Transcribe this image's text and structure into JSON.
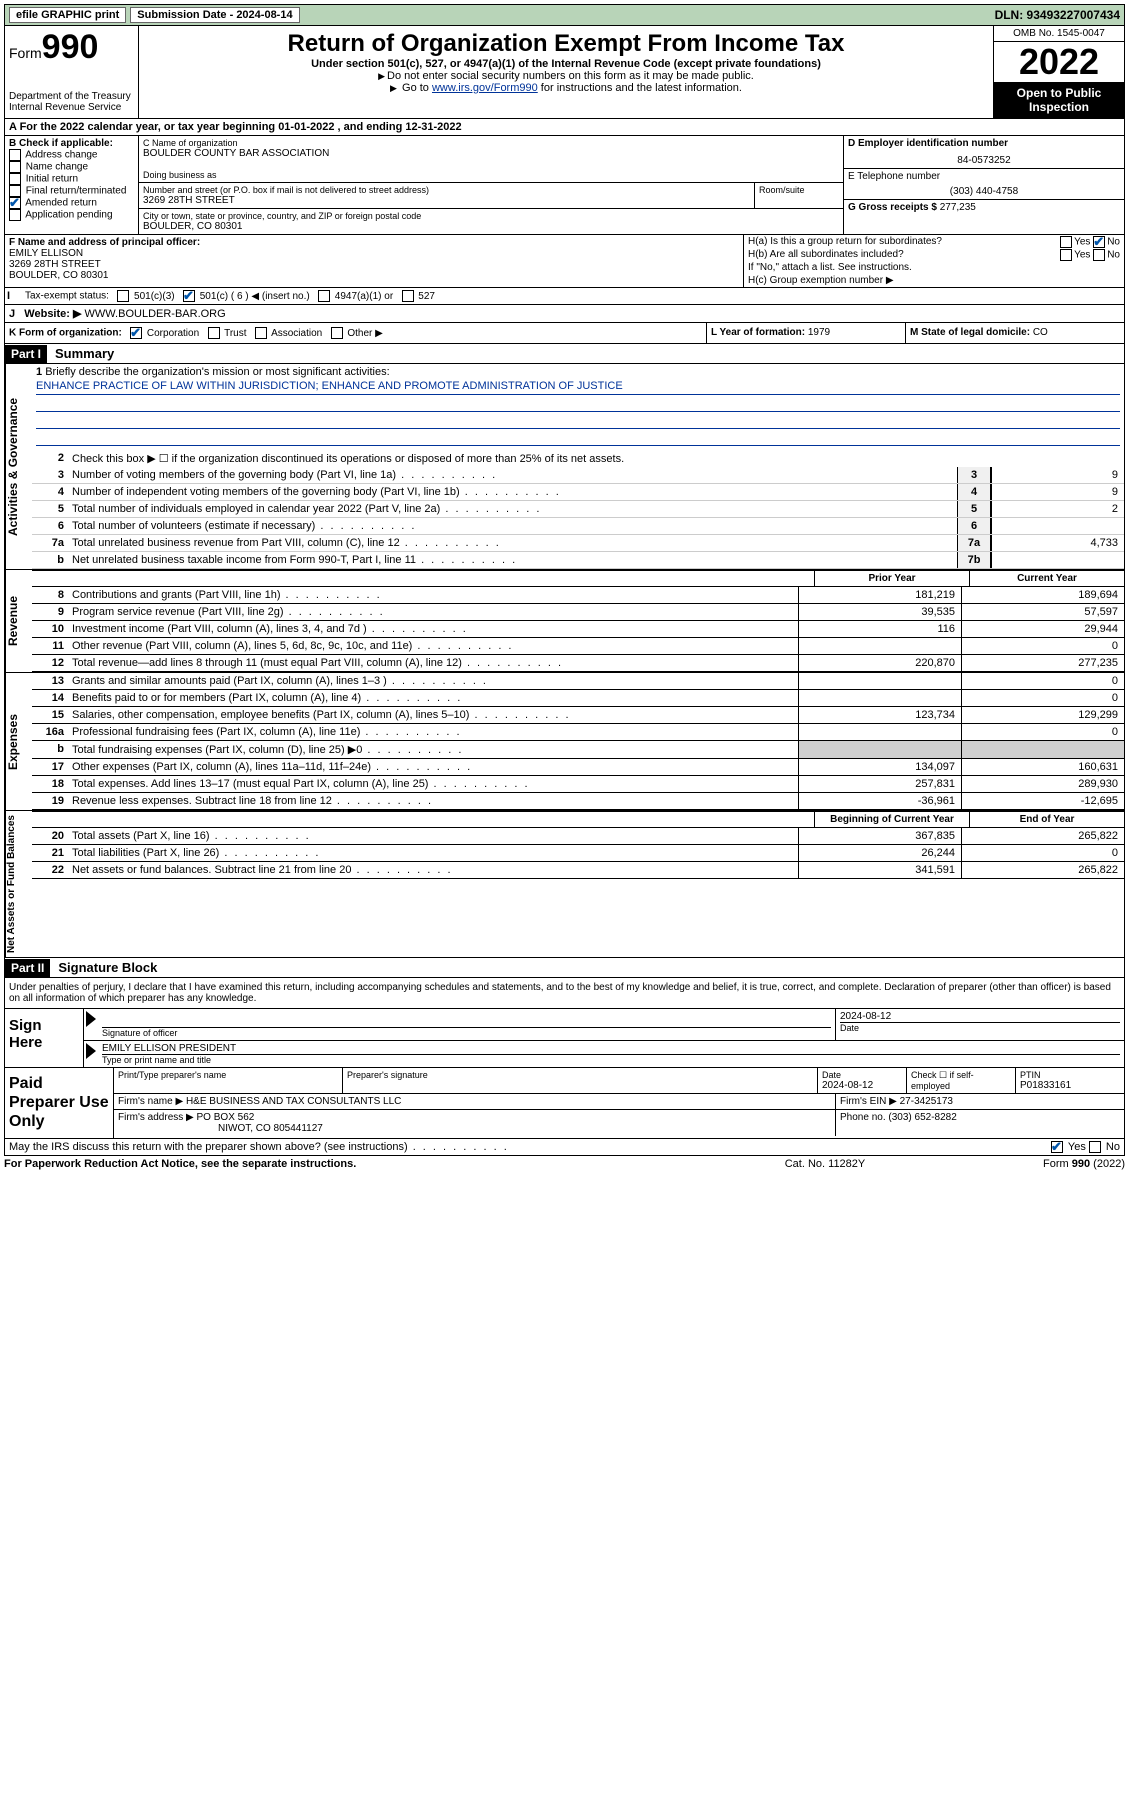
{
  "topbar": {
    "efile": "efile GRAPHIC print",
    "submission_label": "Submission Date - 2024-08-14",
    "dln": "DLN: 93493227007434"
  },
  "header": {
    "form_prefix": "Form",
    "form_number": "990",
    "title": "Return of Organization Exempt From Income Tax",
    "subtitle": "Under section 501(c), 527, or 4947(a)(1) of the Internal Revenue Code (except private foundations)",
    "note1": "Do not enter social security numbers on this form as it may be made public.",
    "note2_pre": "Go to ",
    "note2_link": "www.irs.gov/Form990",
    "note2_post": " for instructions and the latest information.",
    "dept": "Department of the Treasury\nInternal Revenue Service",
    "omb": "OMB No. 1545-0047",
    "year": "2022",
    "open": "Open to Public Inspection"
  },
  "row_a": "A For the 2022 calendar year, or tax year beginning 01-01-2022   , and ending 12-31-2022",
  "col_b": {
    "title": "B Check if applicable:",
    "items": [
      {
        "label": "Address change",
        "checked": false
      },
      {
        "label": "Name change",
        "checked": false
      },
      {
        "label": "Initial return",
        "checked": false
      },
      {
        "label": "Final return/terminated",
        "checked": false
      },
      {
        "label": "Amended return",
        "checked": true
      },
      {
        "label": "Application pending",
        "checked": false
      }
    ]
  },
  "col_c": {
    "name_label": "C Name of organization",
    "name": "BOULDER COUNTY BAR ASSOCIATION",
    "dba_label": "Doing business as",
    "dba": "",
    "street_label": "Number and street (or P.O. box if mail is not delivered to street address)",
    "street": "3269 28TH STREET",
    "suite_label": "Room/suite",
    "city_label": "City or town, state or province, country, and ZIP or foreign postal code",
    "city": "BOULDER, CO  80301"
  },
  "col_d": {
    "label": "D Employer identification number",
    "value": "84-0573252"
  },
  "col_e": {
    "label": "E Telephone number",
    "value": "(303) 440-4758"
  },
  "col_g": {
    "label": "G Gross receipts $",
    "value": "277,235"
  },
  "col_f": {
    "label": "F Name and address of principal officer:",
    "name": "EMILY ELLISON",
    "street": "3269 28TH STREET",
    "city": "BOULDER, CO  80301"
  },
  "col_h": {
    "ha": "H(a)  Is this a group return for subordinates?",
    "ha_yes": false,
    "ha_no": true,
    "hb": "H(b)  Are all subordinates included?",
    "hb_note": "If \"No,\" attach a list. See instructions.",
    "hc": "H(c)  Group exemption number ▶"
  },
  "row_i": {
    "label": "Tax-exempt status:",
    "opts": [
      {
        "label": "501(c)(3)",
        "checked": false
      },
      {
        "label": "501(c) ( 6 ) ◀ (insert no.)",
        "checked": true
      },
      {
        "label": "4947(a)(1) or",
        "checked": false
      },
      {
        "label": "527",
        "checked": false
      }
    ]
  },
  "row_j": {
    "label": "Website: ▶",
    "value": "WWW.BOULDER-BAR.ORG"
  },
  "row_k": {
    "label": "K Form of organization:",
    "opts": [
      {
        "label": "Corporation",
        "checked": true
      },
      {
        "label": "Trust",
        "checked": false
      },
      {
        "label": "Association",
        "checked": false
      },
      {
        "label": "Other ▶",
        "checked": false
      }
    ]
  },
  "row_l": {
    "label": "L Year of formation:",
    "value": "1979"
  },
  "row_m": {
    "label": "M State of legal domicile:",
    "value": "CO"
  },
  "part1": {
    "hdr": "Part I",
    "title": "Summary"
  },
  "mission": {
    "num": "1",
    "label": "Briefly describe the organization's mission or most significant activities:",
    "text": "ENHANCE PRACTICE OF LAW WITHIN JURISDICTION; ENHANCE AND PROMOTE ADMINISTRATION OF JUSTICE"
  },
  "gov_lines": [
    {
      "num": "2",
      "desc": "Check this box ▶ ☐  if the organization discontinued its operations or disposed of more than 25% of its net assets."
    },
    {
      "num": "3",
      "desc": "Number of voting members of the governing body (Part VI, line 1a)",
      "box": "3",
      "val": "9"
    },
    {
      "num": "4",
      "desc": "Number of independent voting members of the governing body (Part VI, line 1b)",
      "box": "4",
      "val": "9"
    },
    {
      "num": "5",
      "desc": "Total number of individuals employed in calendar year 2022 (Part V, line 2a)",
      "box": "5",
      "val": "2"
    },
    {
      "num": "6",
      "desc": "Total number of volunteers (estimate if necessary)",
      "box": "6",
      "val": ""
    },
    {
      "num": "7a",
      "desc": "Total unrelated business revenue from Part VIII, column (C), line 12",
      "box": "7a",
      "val": "4,733"
    },
    {
      "num": "b",
      "desc": "Net unrelated business taxable income from Form 990-T, Part I, line 11",
      "box": "7b",
      "val": ""
    }
  ],
  "col_headers": {
    "prior": "Prior Year",
    "current": "Current Year"
  },
  "revenue": [
    {
      "num": "8",
      "desc": "Contributions and grants (Part VIII, line 1h)",
      "prior": "181,219",
      "curr": "189,694"
    },
    {
      "num": "9",
      "desc": "Program service revenue (Part VIII, line 2g)",
      "prior": "39,535",
      "curr": "57,597"
    },
    {
      "num": "10",
      "desc": "Investment income (Part VIII, column (A), lines 3, 4, and 7d )",
      "prior": "116",
      "curr": "29,944"
    },
    {
      "num": "11",
      "desc": "Other revenue (Part VIII, column (A), lines 5, 6d, 8c, 9c, 10c, and 11e)",
      "prior": "",
      "curr": "0"
    },
    {
      "num": "12",
      "desc": "Total revenue—add lines 8 through 11 (must equal Part VIII, column (A), line 12)",
      "prior": "220,870",
      "curr": "277,235"
    }
  ],
  "expenses": [
    {
      "num": "13",
      "desc": "Grants and similar amounts paid (Part IX, column (A), lines 1–3 )",
      "prior": "",
      "curr": "0"
    },
    {
      "num": "14",
      "desc": "Benefits paid to or for members (Part IX, column (A), line 4)",
      "prior": "",
      "curr": "0"
    },
    {
      "num": "15",
      "desc": "Salaries, other compensation, employee benefits (Part IX, column (A), lines 5–10)",
      "prior": "123,734",
      "curr": "129,299"
    },
    {
      "num": "16a",
      "desc": "Professional fundraising fees (Part IX, column (A), line 11e)",
      "prior": "",
      "curr": "0"
    },
    {
      "num": "b",
      "desc": "Total fundraising expenses (Part IX, column (D), line 25) ▶0",
      "prior": "GREY",
      "curr": "GREY"
    },
    {
      "num": "17",
      "desc": "Other expenses (Part IX, column (A), lines 11a–11d, 11f–24e)",
      "prior": "134,097",
      "curr": "160,631"
    },
    {
      "num": "18",
      "desc": "Total expenses. Add lines 13–17 (must equal Part IX, column (A), line 25)",
      "prior": "257,831",
      "curr": "289,930"
    },
    {
      "num": "19",
      "desc": "Revenue less expenses. Subtract line 18 from line 12",
      "prior": "-36,961",
      "curr": "-12,695"
    }
  ],
  "na_headers": {
    "begin": "Beginning of Current Year",
    "end": "End of Year"
  },
  "netassets": [
    {
      "num": "20",
      "desc": "Total assets (Part X, line 16)",
      "prior": "367,835",
      "curr": "265,822"
    },
    {
      "num": "21",
      "desc": "Total liabilities (Part X, line 26)",
      "prior": "26,244",
      "curr": "0"
    },
    {
      "num": "22",
      "desc": "Net assets or fund balances. Subtract line 21 from line 20",
      "prior": "341,591",
      "curr": "265,822"
    }
  ],
  "part2": {
    "hdr": "Part II",
    "title": "Signature Block"
  },
  "sig_intro": "Under penalties of perjury, I declare that I have examined this return, including accompanying schedules and statements, and to the best of my knowledge and belief, it is true, correct, and complete. Declaration of preparer (other than officer) is based on all information of which preparer has any knowledge.",
  "sign": {
    "left": "Sign Here",
    "sig_label": "Signature of officer",
    "date_label": "Date",
    "date": "2024-08-12",
    "name": "EMILY ELLISON PRESIDENT",
    "name_label": "Type or print name and title"
  },
  "prep": {
    "left": "Paid Preparer Use Only",
    "r1": {
      "c1_label": "Print/Type preparer's name",
      "c1": "",
      "c2_label": "Preparer's signature",
      "c2": "",
      "c3_label": "Date",
      "c3": "2024-08-12",
      "c4_label": "Check ☐ if self-employed",
      "c5_label": "PTIN",
      "c5": "P01833161"
    },
    "r2": {
      "label": "Firm's name    ▶",
      "val": "H&E BUSINESS AND TAX CONSULTANTS LLC",
      "ein_label": "Firm's EIN ▶",
      "ein": "27-3425173"
    },
    "r3": {
      "label": "Firm's address ▶",
      "val1": "PO BOX 562",
      "val2": "NIWOT, CO  805441127",
      "ph_label": "Phone no.",
      "ph": "(303) 652-8282"
    }
  },
  "may": {
    "q": "May the IRS discuss this return with the preparer shown above? (see instructions)",
    "yes": true,
    "no": false
  },
  "footer": {
    "l": "For Paperwork Reduction Act Notice, see the separate instructions.",
    "m": "Cat. No. 11282Y",
    "r": "Form 990 (2022)"
  },
  "side_labels": {
    "gov": "Activities & Governance",
    "rev": "Revenue",
    "exp": "Expenses",
    "na": "Net Assets or Fund Balances"
  }
}
